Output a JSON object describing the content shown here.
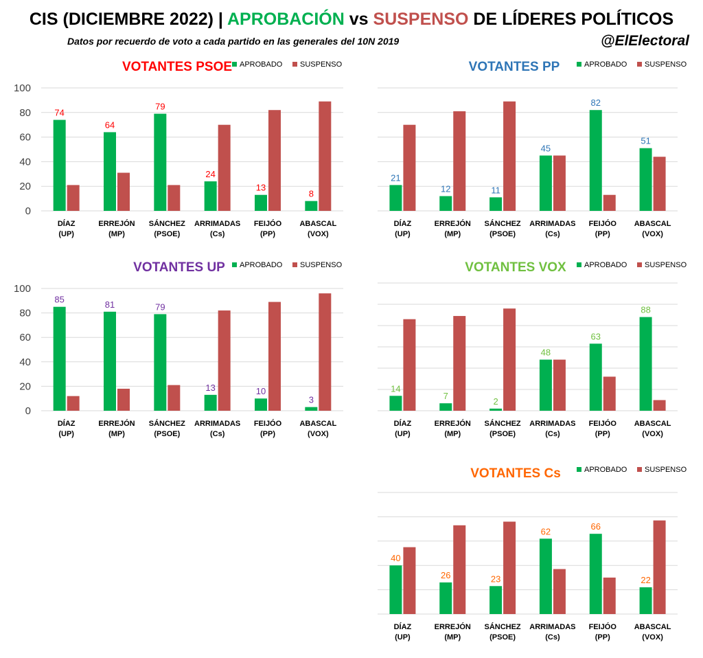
{
  "header": {
    "title_prefix": "CIS (DICIEMBRE 2022) |",
    "title_approve": "APROBACIÓN",
    "title_vs": "vs",
    "title_fail": "SUSPENSO",
    "title_suffix": "DE LÍDERES POLÍTICOS",
    "subtitle": "Datos por recuerdo de voto a cada partido en las generales del 10N 2019",
    "handle": "@ElElectoral"
  },
  "colors": {
    "aprobado": "#00b050",
    "suspenso": "#c0504d",
    "grid": "#d9d9d9"
  },
  "chart_data": [
    {
      "type": "bar",
      "title": "VOTANTES PSOE",
      "title_color": "#ff0000",
      "label_color": "#ff0000",
      "categories": [
        [
          "DÍAZ",
          "(UP)"
        ],
        [
          "ERREJÓN",
          "(MP)"
        ],
        [
          "SÁNCHEZ",
          "(PSOE)"
        ],
        [
          "ARRIMADAS",
          "(Cs)"
        ],
        [
          "FEIJÓO",
          "(PP)"
        ],
        [
          "ABASCAL",
          "(VOX)"
        ]
      ],
      "series": [
        {
          "name": "APROBADO",
          "values": [
            74,
            64,
            79,
            24,
            13,
            8
          ]
        },
        {
          "name": "SUSPENSO",
          "values": [
            21,
            31,
            21,
            70,
            82,
            89
          ]
        }
      ],
      "ylim": [
        0,
        100
      ],
      "yticks": [
        "0",
        "20",
        "40",
        "60",
        "80",
        "100"
      ],
      "show_yticks": true,
      "grid": true,
      "legend": "top-right"
    },
    {
      "type": "bar",
      "title": "VOTANTES PP",
      "title_color": "#2e75b6",
      "label_color": "#2e75b6",
      "categories": [
        [
          "DÍAZ",
          "(UP)"
        ],
        [
          "ERREJÓN",
          "(MP)"
        ],
        [
          "SÁNCHEZ",
          "(PSOE)"
        ],
        [
          "ARRIMADAS",
          "(Cs)"
        ],
        [
          "FEIJÓO",
          "(PP)"
        ],
        [
          "ABASCAL",
          "(VOX)"
        ]
      ],
      "series": [
        {
          "name": "APROBADO",
          "values": [
            21,
            12,
            11,
            45,
            82,
            51
          ]
        },
        {
          "name": "SUSPENSO",
          "values": [
            70,
            81,
            89,
            45,
            13,
            44
          ]
        }
      ],
      "ylim": [
        0,
        100
      ],
      "show_yticks": false,
      "grid": true,
      "legend": "top-right"
    },
    {
      "type": "bar",
      "title": "VOTANTES UP",
      "title_color": "#7030a0",
      "label_color": "#7030a0",
      "categories": [
        [
          "DÍAZ",
          "(UP)"
        ],
        [
          "ERREJÓN",
          "(MP)"
        ],
        [
          "SÁNCHEZ",
          "(PSOE)"
        ],
        [
          "ARRIMADAS",
          "(Cs)"
        ],
        [
          "FEIJÓO",
          "(PP)"
        ],
        [
          "ABASCAL",
          "(VOX)"
        ]
      ],
      "series": [
        {
          "name": "APROBADO",
          "values": [
            85,
            81,
            79,
            13,
            10,
            3
          ]
        },
        {
          "name": "SUSPENSO",
          "values": [
            12,
            18,
            21,
            82,
            89,
            96
          ]
        }
      ],
      "ylim": [
        0,
        100
      ],
      "yticks": [
        "0",
        "20",
        "40",
        "60",
        "80",
        "100"
      ],
      "show_yticks": true,
      "grid": true,
      "legend": "top-right"
    },
    {
      "type": "bar",
      "title": "VOTANTES VOX",
      "title_color": "#70c040",
      "label_color": "#70c040",
      "categories": [
        [
          "DÍAZ",
          "(UP)"
        ],
        [
          "ERREJÓN",
          "(MP)"
        ],
        [
          "SÁNCHEZ",
          "(PSOE)"
        ],
        [
          "ARRIMADAS",
          "(Cs)"
        ],
        [
          "FEIJÓO",
          "(PP)"
        ],
        [
          "ABASCAL",
          "(VOX)"
        ]
      ],
      "series": [
        {
          "name": "APROBADO",
          "values": [
            14,
            7,
            2,
            48,
            63,
            88
          ]
        },
        {
          "name": "SUSPENSO",
          "values": [
            86,
            89,
            96,
            48,
            32,
            10
          ]
        }
      ],
      "ylim": [
        0,
        120
      ],
      "show_yticks": false,
      "grid": true,
      "legend": "top-right"
    },
    {
      "type": "bar",
      "title": "VOTANTES Cs",
      "title_color": "#ff6600",
      "label_color": "#ff6600",
      "categories": [
        [
          "DÍAZ",
          "(UP)"
        ],
        [
          "ERREJÓN",
          "(MP)"
        ],
        [
          "SÁNCHEZ",
          "(PSOE)"
        ],
        [
          "ARRIMADAS",
          "(Cs)"
        ],
        [
          "FEIJÓO",
          "(PP)"
        ],
        [
          "ABASCAL",
          "(VOX)"
        ]
      ],
      "series": [
        {
          "name": "APROBADO",
          "values": [
            40,
            26,
            23,
            62,
            66,
            22
          ]
        },
        {
          "name": "SUSPENSO",
          "values": [
            55,
            73,
            76,
            37,
            30,
            77
          ]
        }
      ],
      "ylim": [
        0,
        100
      ],
      "show_yticks": false,
      "grid": true,
      "legend": "top-right"
    }
  ]
}
